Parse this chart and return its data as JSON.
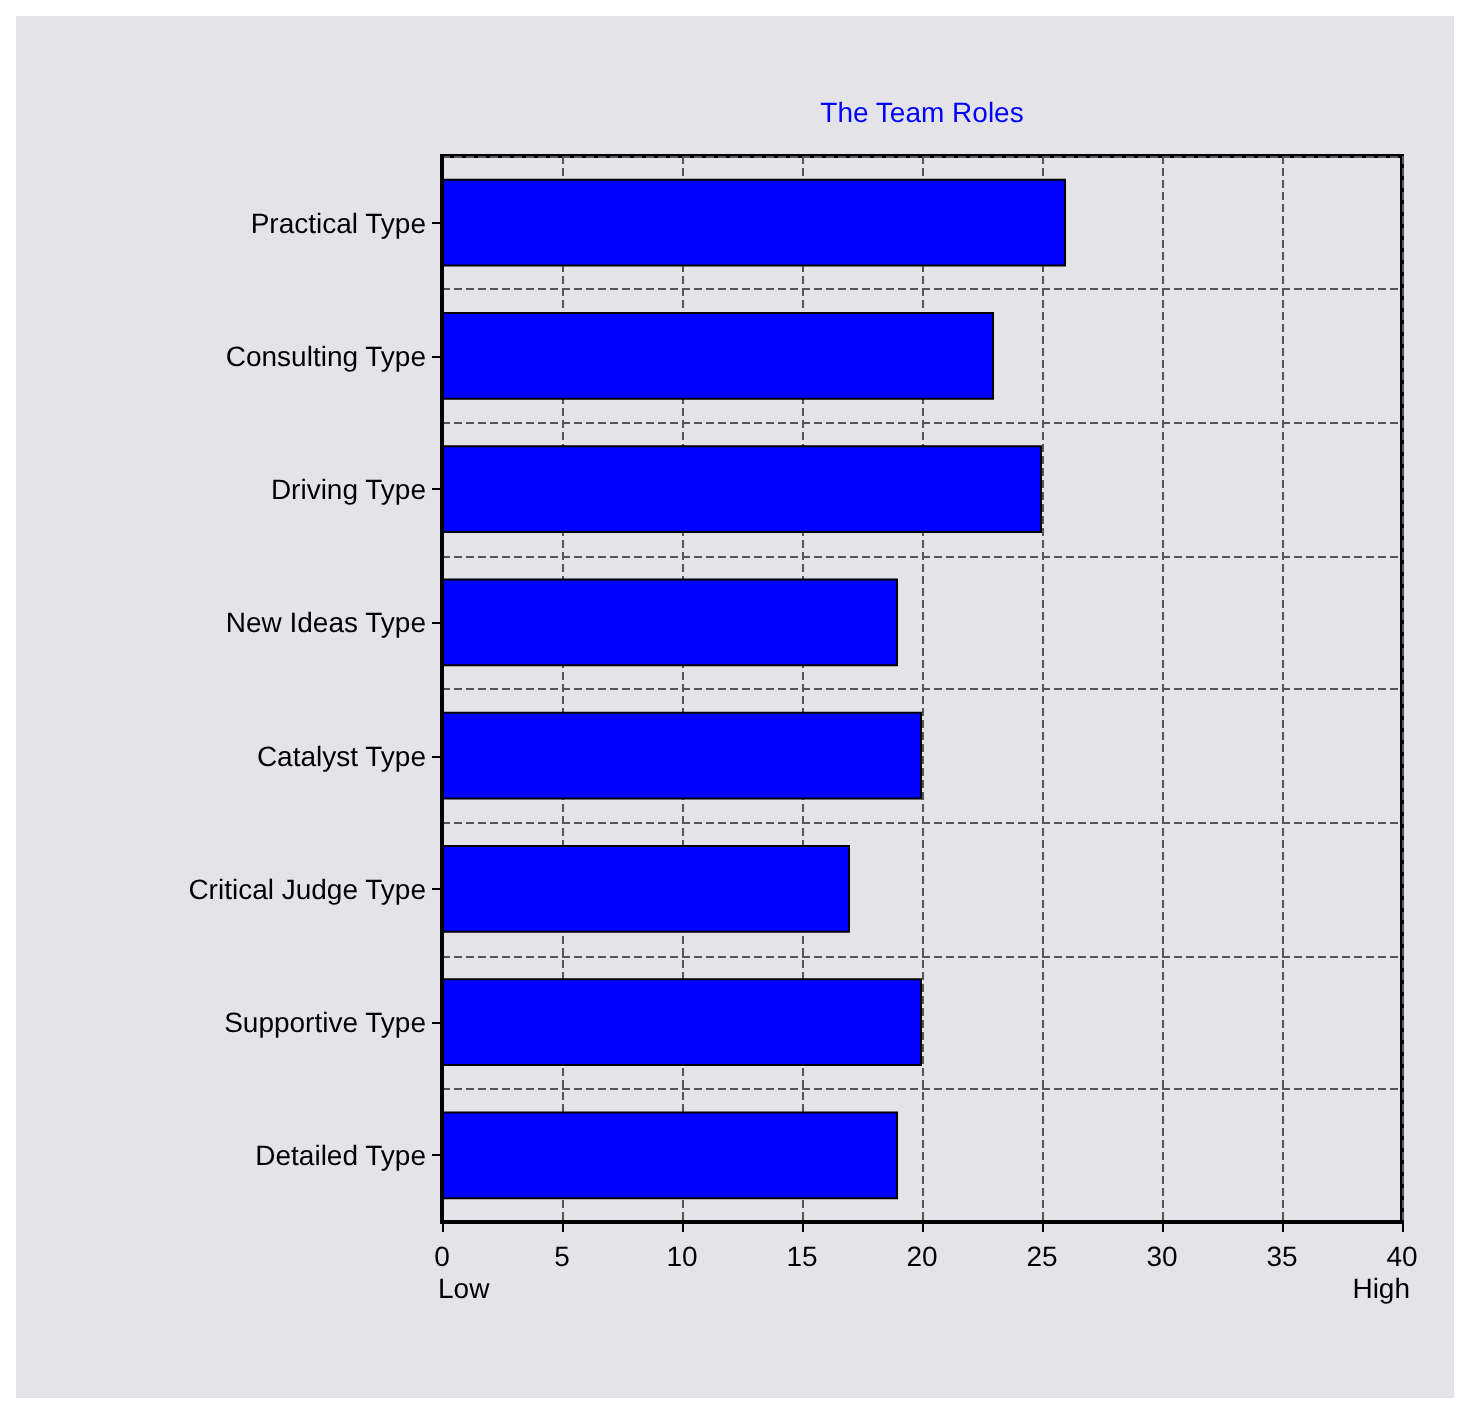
{
  "chart_data": {
    "type": "bar",
    "orientation": "horizontal",
    "title": "The Team Roles",
    "categories": [
      "Practical Type",
      "Consulting Type",
      "Driving Type",
      "New Ideas Type",
      "Catalyst Type",
      "Critical Judge Type",
      "Supportive Type",
      "Detailed Type"
    ],
    "values": [
      26,
      23,
      25,
      19,
      20,
      17,
      20,
      19
    ],
    "color": "#0000ff",
    "xlim": [
      0,
      40
    ],
    "xticks": [
      0,
      5,
      10,
      15,
      20,
      25,
      30,
      35,
      40
    ],
    "grid": true,
    "annotations": [
      "Low",
      "High"
    ]
  }
}
